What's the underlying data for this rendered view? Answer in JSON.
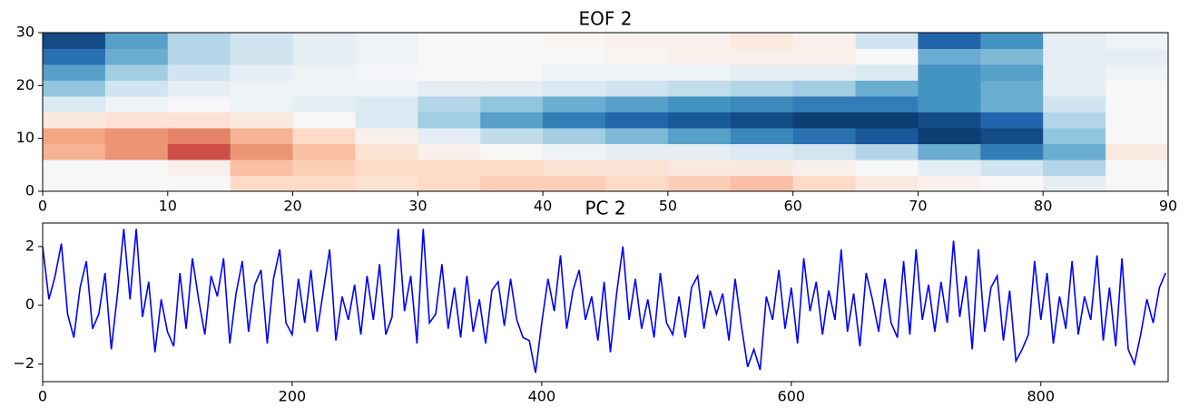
{
  "chart_data": [
    {
      "type": "heatmap",
      "title": "EOF 2",
      "cmap": "RdBu_r",
      "clim": [
        -1,
        1
      ],
      "xlim": [
        0,
        90
      ],
      "ylim": [
        0,
        30
      ],
      "xticks": [
        0,
        10,
        20,
        30,
        40,
        50,
        60,
        70,
        80,
        90
      ],
      "yticks": [
        0,
        10,
        20,
        30
      ],
      "z": [
        [
          0,
          0,
          0,
          0.2,
          0.2,
          0.15,
          0.2,
          0.25,
          0.25,
          0.2,
          0.25,
          0.3,
          0.2,
          0.1,
          0.05,
          0,
          -0.1,
          0
        ],
        [
          0,
          0,
          0.05,
          0.3,
          0.25,
          0.2,
          0.2,
          0.2,
          0.15,
          0.15,
          0.1,
          0.1,
          0.05,
          0,
          -0.1,
          -0.2,
          -0.3,
          0
        ],
        [
          0.35,
          0.45,
          0.65,
          0.45,
          0.3,
          0.15,
          0.05,
          0,
          -0.05,
          -0.1,
          -0.1,
          -0.15,
          -0.2,
          -0.3,
          -0.5,
          -0.7,
          -0.5,
          0.1
        ],
        [
          0.4,
          0.45,
          0.5,
          0.35,
          0.2,
          0.05,
          -0.1,
          -0.25,
          -0.35,
          -0.45,
          -0.55,
          -0.65,
          -0.75,
          -0.85,
          -0.95,
          -0.9,
          -0.4,
          0
        ],
        [
          0.1,
          0.15,
          0.15,
          0.1,
          0,
          -0.15,
          -0.35,
          -0.55,
          -0.7,
          -0.8,
          -0.85,
          -0.9,
          -0.95,
          -0.95,
          -0.9,
          -0.8,
          -0.3,
          0
        ],
        [
          -0.15,
          -0.05,
          0,
          -0.05,
          -0.1,
          -0.15,
          -0.3,
          -0.4,
          -0.5,
          -0.55,
          -0.6,
          -0.65,
          -0.7,
          -0.7,
          -0.6,
          -0.5,
          -0.2,
          0
        ],
        [
          -0.4,
          -0.2,
          -0.1,
          -0.05,
          -0.05,
          -0.05,
          -0.1,
          -0.1,
          -0.15,
          -0.2,
          -0.25,
          -0.3,
          -0.35,
          -0.5,
          -0.6,
          -0.5,
          -0.1,
          0
        ],
        [
          -0.55,
          -0.35,
          -0.2,
          -0.1,
          -0.05,
          -0.02,
          0,
          0,
          -0.05,
          -0.05,
          -0.05,
          -0.1,
          -0.1,
          -0.15,
          -0.6,
          -0.55,
          -0.1,
          -0.05
        ],
        [
          -0.75,
          -0.5,
          -0.3,
          -0.2,
          -0.1,
          -0.05,
          0,
          0,
          0,
          0.02,
          0.05,
          0.05,
          0.05,
          0,
          -0.5,
          -0.45,
          -0.1,
          -0.1
        ],
        [
          -0.9,
          -0.55,
          -0.3,
          -0.2,
          -0.1,
          -0.05,
          0,
          0,
          0.02,
          0.05,
          0.05,
          0.1,
          0.05,
          -0.2,
          -0.8,
          -0.6,
          -0.1,
          -0.05
        ]
      ]
    },
    {
      "type": "line",
      "title": "PC 2",
      "xlim": [
        0,
        902
      ],
      "ylim": [
        -2.6,
        2.8
      ],
      "xticks": [
        0,
        200,
        400,
        600,
        800
      ],
      "yticks": [
        -2,
        0,
        2
      ],
      "x": [
        0,
        5,
        10,
        15,
        20,
        25,
        30,
        35,
        40,
        45,
        50,
        55,
        60,
        65,
        70,
        75,
        80,
        85,
        90,
        95,
        100,
        105,
        110,
        115,
        120,
        125,
        130,
        135,
        140,
        145,
        150,
        155,
        160,
        165,
        170,
        175,
        180,
        185,
        190,
        195,
        200,
        205,
        210,
        215,
        220,
        225,
        230,
        235,
        240,
        245,
        250,
        255,
        260,
        265,
        270,
        275,
        280,
        285,
        290,
        295,
        300,
        305,
        310,
        315,
        320,
        325,
        330,
        335,
        340,
        345,
        350,
        355,
        360,
        365,
        370,
        375,
        380,
        385,
        390,
        395,
        400,
        405,
        410,
        415,
        420,
        425,
        430,
        435,
        440,
        445,
        450,
        455,
        460,
        465,
        470,
        475,
        480,
        485,
        490,
        495,
        500,
        505,
        510,
        515,
        520,
        525,
        530,
        535,
        540,
        545,
        550,
        555,
        560,
        565,
        570,
        575,
        580,
        585,
        590,
        595,
        600,
        605,
        610,
        615,
        620,
        625,
        630,
        635,
        640,
        645,
        650,
        655,
        660,
        665,
        670,
        675,
        680,
        685,
        690,
        695,
        700,
        705,
        710,
        715,
        720,
        725,
        730,
        735,
        740,
        745,
        750,
        755,
        760,
        765,
        770,
        775,
        780,
        785,
        790,
        795,
        800,
        805,
        810,
        815,
        820,
        825,
        830,
        835,
        840,
        845,
        850,
        855,
        860,
        865,
        870,
        875,
        880,
        885,
        890,
        895,
        900
      ],
      "series": [
        {
          "color": "#0000ff",
          "values": [
            2.0,
            0.2,
            1.0,
            2.1,
            -0.3,
            -1.1,
            0.6,
            1.5,
            -0.8,
            -0.3,
            1.1,
            -1.5,
            0.4,
            2.6,
            0.2,
            2.6,
            -0.4,
            0.8,
            -1.6,
            0.2,
            -0.9,
            -1.4,
            1.1,
            -0.8,
            1.6,
            0.2,
            -1.0,
            1.0,
            0.3,
            1.6,
            -1.3,
            0.4,
            1.5,
            -0.9,
            0.7,
            1.2,
            -1.3,
            0.9,
            1.9,
            -0.6,
            -1.0,
            0.9,
            -0.6,
            1.2,
            -0.9,
            0.5,
            1.9,
            -1.2,
            0.3,
            -0.5,
            0.7,
            -1.0,
            1.0,
            -0.5,
            1.4,
            -1.0,
            -0.4,
            2.6,
            -0.2,
            1.0,
            -1.3,
            2.6,
            -0.6,
            -0.3,
            1.4,
            -0.8,
            0.6,
            -1.1,
            1.0,
            -0.9,
            0.2,
            -1.3,
            0.5,
            0.8,
            -0.7,
            0.9,
            -0.5,
            -1.1,
            -1.2,
            -2.3,
            -0.6,
            0.9,
            -0.2,
            1.7,
            -0.8,
            0.5,
            1.2,
            -0.5,
            0.3,
            -1.2,
            0.8,
            -1.6,
            0.4,
            2.0,
            -0.5,
            0.9,
            -0.8,
            0.2,
            -1.1,
            1.1,
            -0.6,
            -1.0,
            0.3,
            -1.1,
            0.6,
            1.0,
            -0.8,
            0.5,
            -0.3,
            0.4,
            -1.2,
            0.9,
            -0.7,
            -2.1,
            -1.5,
            -2.2,
            0.3,
            -0.5,
            1.2,
            -0.8,
            0.6,
            -1.3,
            1.6,
            -0.2,
            0.8,
            -1.0,
            0.5,
            -0.5,
            1.9,
            -0.9,
            0.4,
            -1.4,
            1.1,
            0.2,
            -0.9,
            0.9,
            -0.6,
            -1.1,
            1.5,
            -1.0,
            1.9,
            -0.5,
            0.7,
            -0.9,
            0.8,
            -0.6,
            2.2,
            -0.4,
            1.0,
            -1.5,
            1.9,
            -0.9,
            0.6,
            1.0,
            -1.2,
            0.5,
            -1.9,
            -1.5,
            -1.0,
            1.5,
            -0.5,
            1.1,
            -1.3,
            0.3,
            -0.8,
            1.5,
            -1.0,
            0.3,
            -0.5,
            1.7,
            -1.2,
            0.6,
            -1.4,
            1.6,
            -1.5,
            -2.0,
            -1.0,
            0.2,
            -0.6,
            0.6,
            1.1
          ]
        }
      ]
    }
  ]
}
